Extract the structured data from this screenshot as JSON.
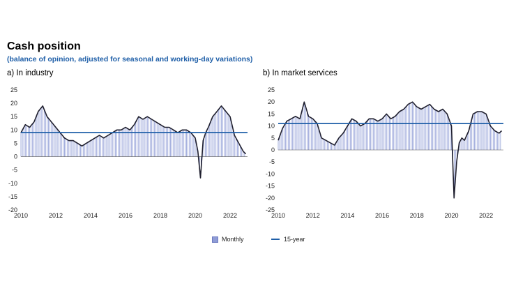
{
  "header": {
    "title": "Cash position",
    "subtitle": "(balance of opinion, adjusted for seasonal and working-day variations)"
  },
  "legend": {
    "monthly": "Monthly",
    "fifteen_year": "15-year"
  },
  "colors": {
    "bars": "#8f9cd6",
    "line": "#1f1f2e",
    "average": "#1f5fa8"
  },
  "chart_data": [
    {
      "type": "bar",
      "panel_label": "a)  In industry",
      "ylim": [
        -20,
        25
      ],
      "yticks": [
        -20,
        -15,
        -10,
        -5,
        0,
        5,
        10,
        15,
        20,
        25
      ],
      "xlim": [
        2010,
        2023
      ],
      "xticks": [
        2010,
        2012,
        2014,
        2016,
        2018,
        2020,
        2022
      ],
      "average_15_year": 9,
      "series": [
        {
          "name": "Monthly",
          "x": [
            2010.0,
            2010.25,
            2010.5,
            2010.75,
            2011.0,
            2011.25,
            2011.5,
            2011.75,
            2012.0,
            2012.25,
            2012.5,
            2012.75,
            2013.0,
            2013.25,
            2013.5,
            2013.75,
            2014.0,
            2014.25,
            2014.5,
            2014.75,
            2015.0,
            2015.25,
            2015.5,
            2015.75,
            2016.0,
            2016.25,
            2016.5,
            2016.75,
            2017.0,
            2017.25,
            2017.5,
            2017.75,
            2018.0,
            2018.25,
            2018.5,
            2018.75,
            2019.0,
            2019.25,
            2019.5,
            2019.75,
            2020.0,
            2020.15,
            2020.3,
            2020.45,
            2020.6,
            2020.75,
            2021.0,
            2021.25,
            2021.5,
            2021.75,
            2022.0,
            2022.25,
            2022.5,
            2022.75,
            2022.9
          ],
          "values": [
            9,
            12,
            11,
            13,
            17,
            19,
            15,
            13,
            11,
            9,
            7,
            6,
            6,
            5,
            4,
            5,
            6,
            7,
            8,
            7,
            8,
            9,
            10,
            10,
            11,
            10,
            12,
            15,
            14,
            15,
            14,
            13,
            12,
            11,
            11,
            10,
            9,
            10,
            10,
            9,
            7,
            2,
            -8,
            6,
            9,
            11,
            15,
            17,
            19,
            17,
            15,
            8,
            5,
            2,
            1
          ]
        }
      ]
    },
    {
      "type": "bar",
      "panel_label": "b)  In market services",
      "ylim": [
        -25,
        25
      ],
      "yticks": [
        -25,
        -20,
        -15,
        -10,
        -5,
        0,
        5,
        10,
        15,
        20,
        25
      ],
      "xlim": [
        2010,
        2023
      ],
      "xticks": [
        2010,
        2012,
        2014,
        2016,
        2018,
        2020,
        2022
      ],
      "average_15_year": 11,
      "series": [
        {
          "name": "Monthly",
          "x": [
            2010.0,
            2010.25,
            2010.5,
            2010.75,
            2011.0,
            2011.25,
            2011.5,
            2011.75,
            2012.0,
            2012.25,
            2012.5,
            2012.75,
            2013.0,
            2013.25,
            2013.5,
            2013.75,
            2014.0,
            2014.25,
            2014.5,
            2014.75,
            2015.0,
            2015.25,
            2015.5,
            2015.75,
            2016.0,
            2016.25,
            2016.5,
            2016.75,
            2017.0,
            2017.25,
            2017.5,
            2017.75,
            2018.0,
            2018.25,
            2018.5,
            2018.75,
            2019.0,
            2019.25,
            2019.5,
            2019.75,
            2020.0,
            2020.15,
            2020.3,
            2020.45,
            2020.6,
            2020.75,
            2021.0,
            2021.25,
            2021.5,
            2021.75,
            2022.0,
            2022.25,
            2022.5,
            2022.75,
            2022.9
          ],
          "values": [
            4,
            9,
            12,
            13,
            14,
            13,
            20,
            14,
            13,
            11,
            5,
            4,
            3,
            2,
            5,
            7,
            10,
            13,
            12,
            10,
            11,
            13,
            13,
            12,
            13,
            15,
            13,
            14,
            16,
            17,
            19,
            20,
            18,
            17,
            18,
            19,
            17,
            16,
            17,
            15,
            10,
            -20,
            -5,
            3,
            5,
            4,
            8,
            15,
            16,
            16,
            15,
            10,
            8,
            7,
            8
          ]
        }
      ]
    }
  ]
}
